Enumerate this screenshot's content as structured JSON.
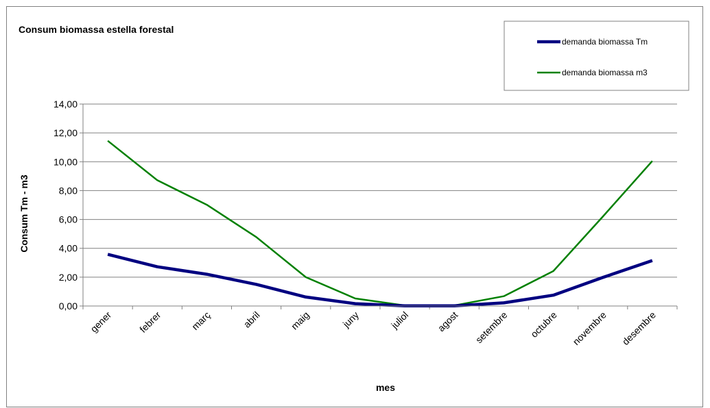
{
  "chart_data": {
    "type": "line",
    "title": "Consum biomassa estella forestal",
    "xlabel": "mes",
    "ylabel": "Consum Tm - m3",
    "categories": [
      "gener",
      "febrer",
      "març",
      "abril",
      "maig",
      "juny",
      "juliol",
      "agost",
      "setembre",
      "octubre",
      "novembre",
      "desembre"
    ],
    "ylim": [
      0,
      14
    ],
    "yticks": [
      "0,00",
      "2,00",
      "4,00",
      "6,00",
      "8,00",
      "10,00",
      "12,00",
      "14,00"
    ],
    "grid": "horizontal",
    "legend_position": "top-right",
    "series": [
      {
        "name": "demanda biomassa Tm",
        "color": "#000080",
        "values": [
          3.58,
          2.72,
          2.2,
          1.5,
          0.62,
          0.16,
          0.01,
          0.01,
          0.22,
          0.75,
          1.98,
          3.15
        ]
      },
      {
        "name": "demanda biomassa m3",
        "color": "#008000",
        "values": [
          11.45,
          8.72,
          7.02,
          4.78,
          2.0,
          0.52,
          0.04,
          0.04,
          0.68,
          2.42,
          6.2,
          10.05
        ]
      }
    ]
  }
}
